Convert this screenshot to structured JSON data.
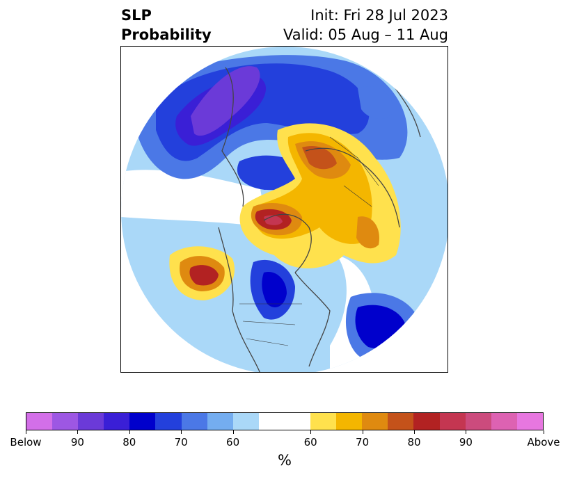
{
  "title": {
    "left_line1": "SLP",
    "left_line2": "Probability",
    "right_line1": "Init: Fri 28 Jul 2023",
    "right_line2": "Valid: 05 Aug – 11 Aug"
  },
  "map": {
    "projection": "north-polar-stereographic",
    "field": "SLP probability",
    "colors": {
      "background": "#ffffff",
      "coastline": "#444444",
      "border": "#333333"
    },
    "regions": [
      {
        "name": "scandinavia-below-core",
        "category": "Below 85-90",
        "color": "#5a3ad6"
      },
      {
        "name": "eurasia-below",
        "category": "Below 70-80",
        "color": "#1e2fd9"
      },
      {
        "name": "central-siberia-above",
        "category": "Above 75-80",
        "color": "#c4521a"
      },
      {
        "name": "greenland-above",
        "category": "Above 75-85",
        "color": "#b22222"
      },
      {
        "name": "north-pacific-above",
        "category": "Above 80-85",
        "color": "#b22222"
      },
      {
        "name": "hudson-bay-below",
        "category": "Below 75-80",
        "color": "#0000cc"
      },
      {
        "name": "north-atlantic-below",
        "category": "Below 75-80",
        "color": "#0000cc"
      }
    ]
  },
  "colorbar": {
    "segments": [
      "#d36fe8",
      "#9d57e3",
      "#6b3ad8",
      "#3a1fd6",
      "#0000cc",
      "#2340dc",
      "#4b78e6",
      "#74adf0",
      "#aad8f8",
      "#ffffff",
      "#ffffff",
      "#ffe14d",
      "#f4b600",
      "#df8a10",
      "#c4521a",
      "#b22222",
      "#c43651",
      "#cc4b7d",
      "#dd62b2",
      "#e777e0"
    ],
    "tick_labels": [
      "Below",
      "90",
      "80",
      "70",
      "60",
      "60",
      "70",
      "80",
      "90",
      "Above"
    ],
    "unit_label": "%"
  }
}
